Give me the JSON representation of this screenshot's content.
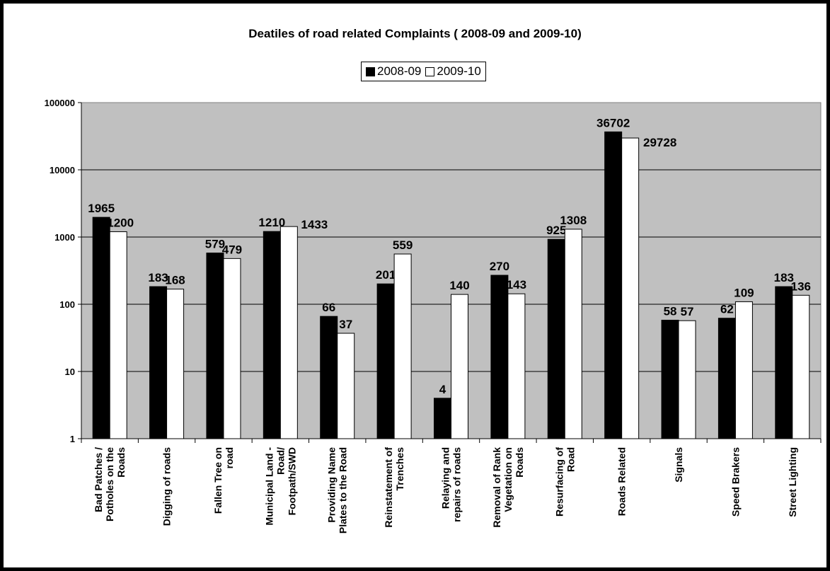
{
  "chart_data": {
    "type": "bar",
    "title": "Deatiles of road related Complaints ( 2008-09 and 2009-10)",
    "xlabel": "",
    "ylabel": "",
    "yscale": "log",
    "ylim": [
      1,
      100000
    ],
    "yticks": [
      "1",
      "10",
      "100",
      "1000",
      "10000",
      "100000"
    ],
    "grid": true,
    "legend_position": "top-center",
    "plot_background": "#c0c0c0",
    "categories": [
      "Bad Patches / Potholes on the Roads",
      "Digging of roads",
      "Fallen Tree on road",
      "Municipal Land - Road/ Footpath/SWD",
      "Providing Name Plates to the Road",
      "Reinstatement of Trenches",
      "Relaying and repairs of roads",
      "Removal of Rank Vegetation on Roads",
      "Resurfacing of Road",
      "Roads Related",
      "Signals",
      "Speed Brakers",
      "Street Lighting"
    ],
    "series": [
      {
        "name": "2008-09",
        "color": "#000000",
        "values": [
          1965,
          183,
          579,
          1210,
          66,
          201,
          4,
          270,
          925,
          36702,
          58,
          62,
          183
        ]
      },
      {
        "name": "2009-10",
        "color": "#ffffff",
        "values": [
          1200,
          168,
          479,
          1433,
          37,
          559,
          140,
          143,
          1308,
          29728,
          57,
          109,
          136
        ]
      }
    ]
  }
}
